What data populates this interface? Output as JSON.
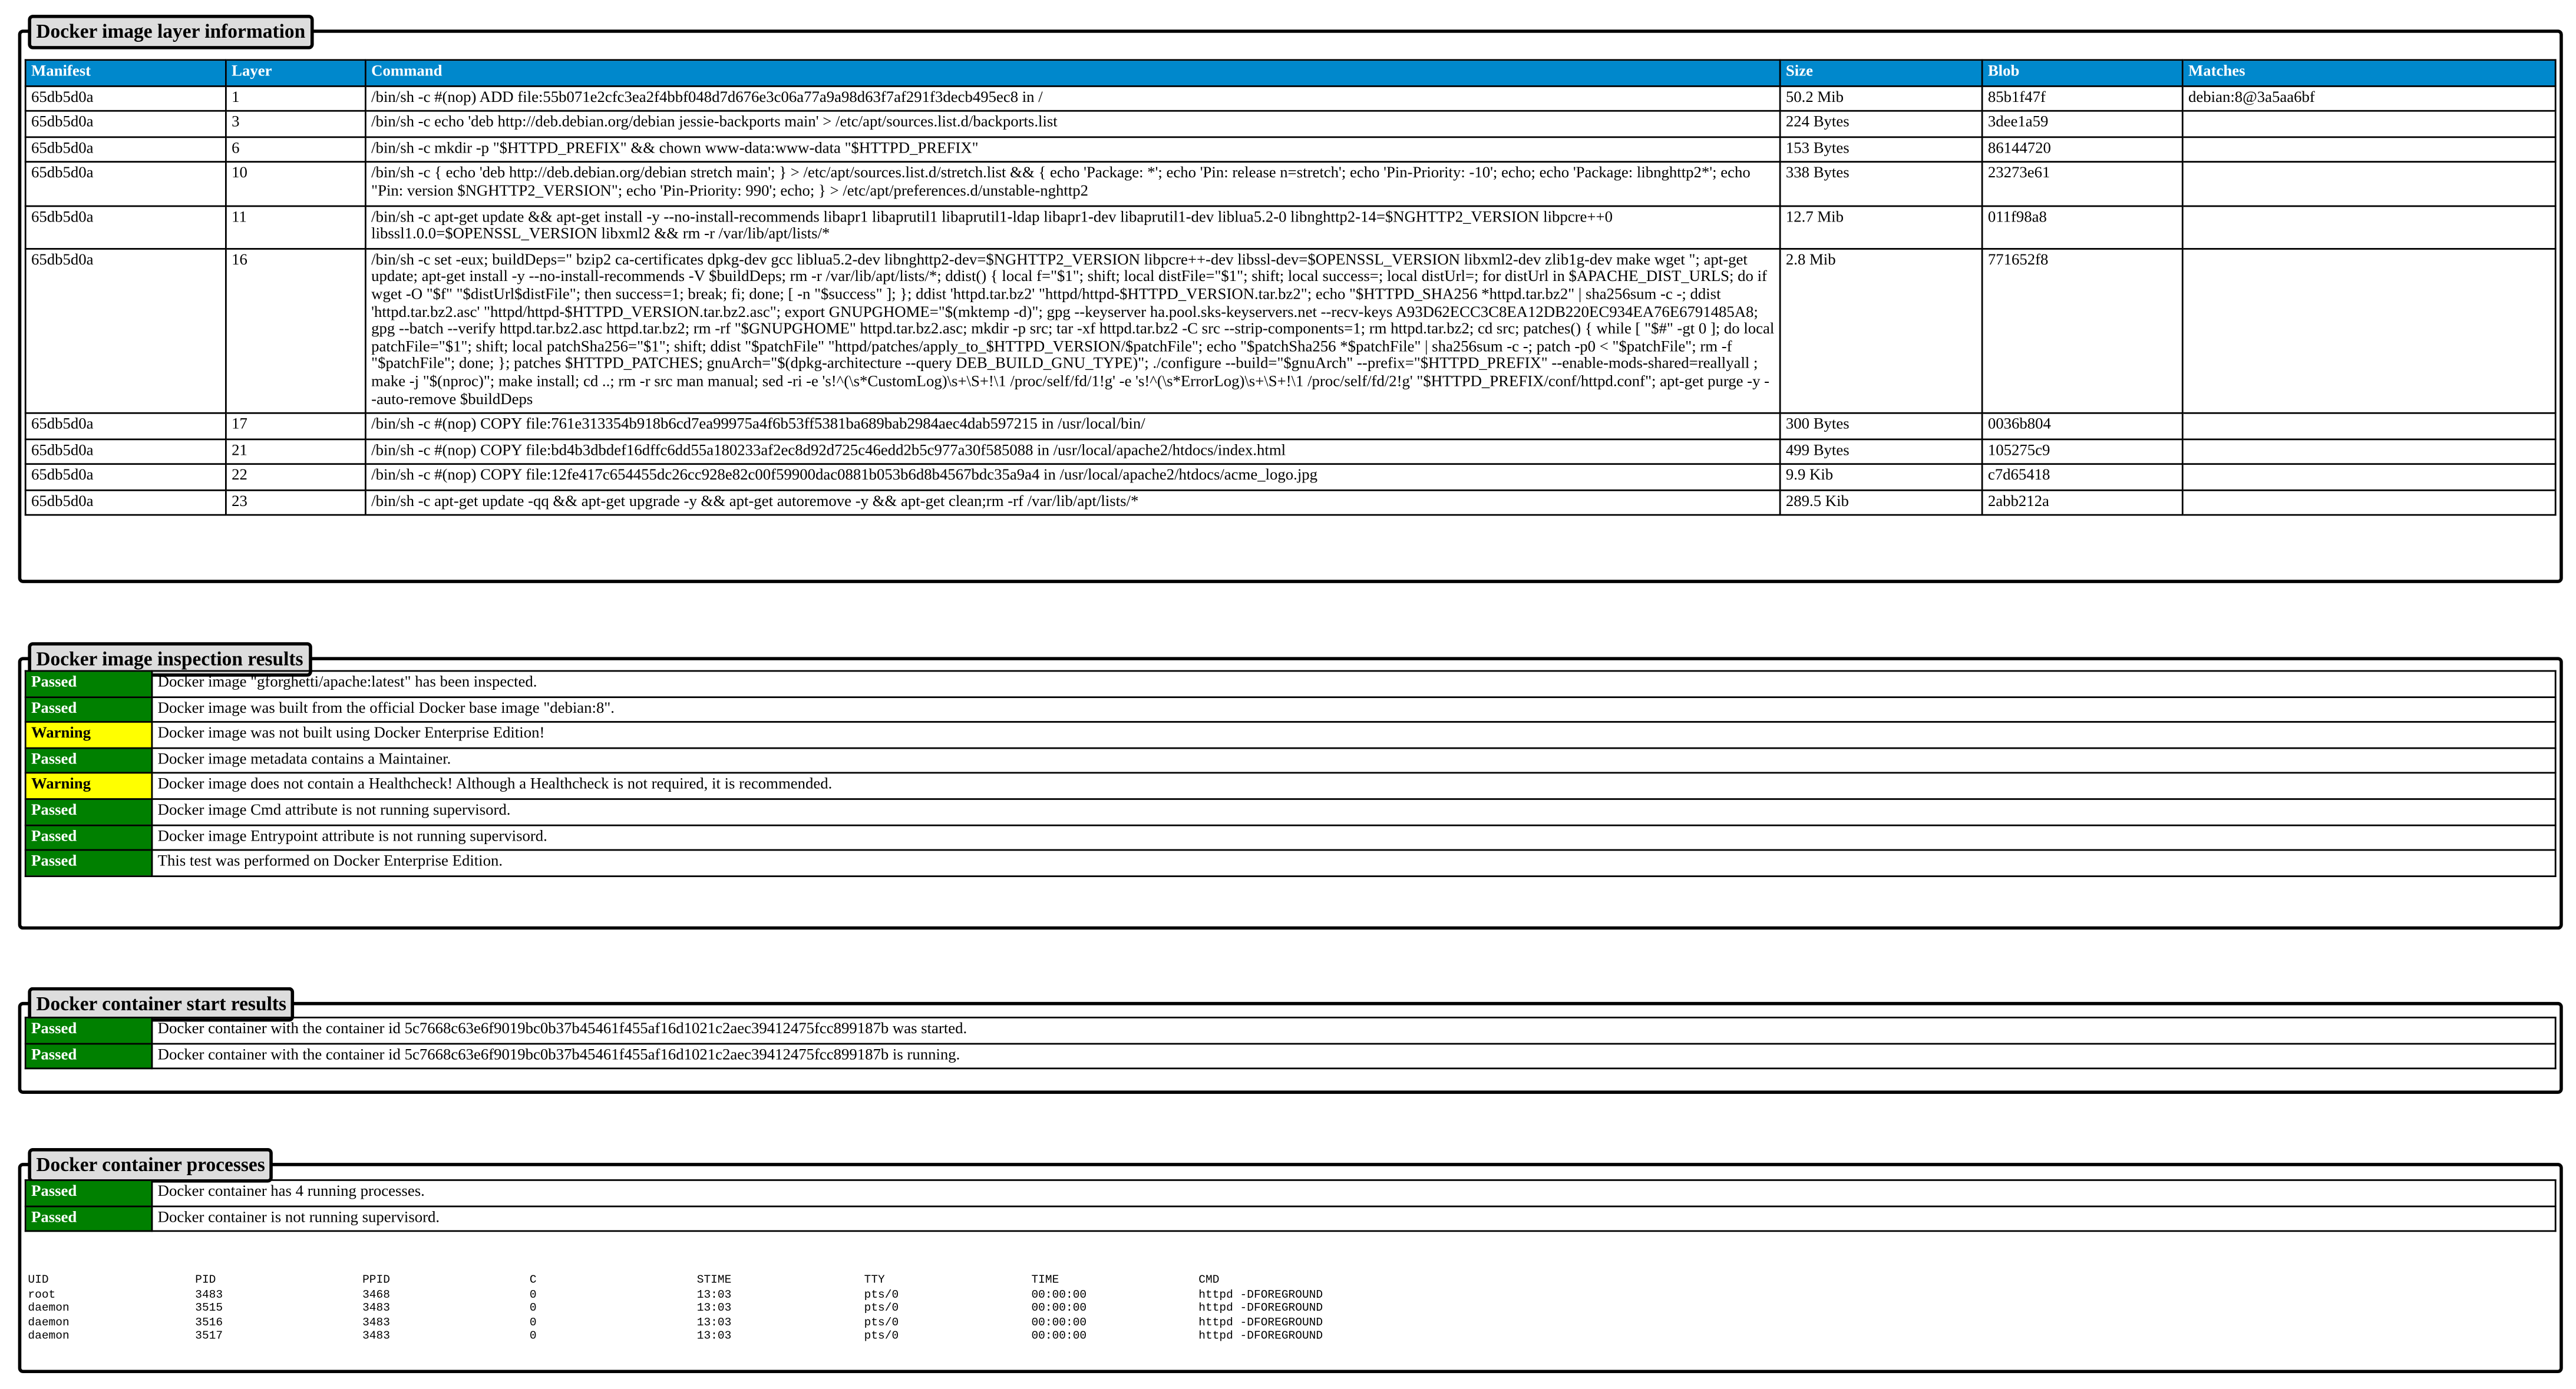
{
  "layers": {
    "title": "Docker image layer information",
    "columns": [
      "Manifest",
      "Layer",
      "Command",
      "Size",
      "Blob",
      "Matches"
    ],
    "rows": [
      [
        "65db5d0a",
        "1",
        "/bin/sh -c #(nop) ADD file:55b071e2cfc3ea2f4bbf048d7d676e3c06a77a9a98d63f7af291f3decb495ec8 in /",
        "50.2 Mib",
        "85b1f47f",
        "debian:8@3a5aa6bf"
      ],
      [
        "65db5d0a",
        "3",
        "/bin/sh -c echo 'deb http://deb.debian.org/debian jessie-backports main' > /etc/apt/sources.list.d/backports.list",
        "224 Bytes",
        "3dee1a59",
        ""
      ],
      [
        "65db5d0a",
        "6",
        "/bin/sh -c mkdir -p \"$HTTPD_PREFIX\" && chown www-data:www-data \"$HTTPD_PREFIX\"",
        "153 Bytes",
        "86144720",
        ""
      ],
      [
        "65db5d0a",
        "10",
        "/bin/sh -c { echo 'deb http://deb.debian.org/debian stretch main'; } > /etc/apt/sources.list.d/stretch.list && { echo 'Package: *'; echo 'Pin: release n=stretch'; echo 'Pin-Priority: -10'; echo; echo 'Package: libnghttp2*'; echo \"Pin: version $NGHTTP2_VERSION\"; echo 'Pin-Priority: 990'; echo; } > /etc/apt/preferences.d/unstable-nghttp2",
        "338 Bytes",
        "23273e61",
        ""
      ],
      [
        "65db5d0a",
        "11",
        "/bin/sh -c apt-get update && apt-get install -y --no-install-recommends libapr1 libaprutil1 libaprutil1-ldap libapr1-dev libaprutil1-dev liblua5.2-0 libnghttp2-14=$NGHTTP2_VERSION libpcre++0 libssl1.0.0=$OPENSSL_VERSION libxml2 && rm -r /var/lib/apt/lists/*",
        "12.7 Mib",
        "011f98a8",
        ""
      ],
      [
        "65db5d0a",
        "16",
        "/bin/sh -c set -eux; buildDeps=\" bzip2 ca-certificates dpkg-dev gcc liblua5.2-dev libnghttp2-dev=$NGHTTP2_VERSION libpcre++-dev libssl-dev=$OPENSSL_VERSION libxml2-dev zlib1g-dev make wget \"; apt-get update; apt-get install -y --no-install-recommends -V $buildDeps; rm -r /var/lib/apt/lists/*; ddist() { local f=\"$1\"; shift; local distFile=\"$1\"; shift; local success=; local distUrl=; for distUrl in $APACHE_DIST_URLS; do if wget -O \"$f\" \"$distUrl$distFile\"; then success=1; break; fi; done; [ -n \"$success\" ]; }; ddist 'httpd.tar.bz2' \"httpd/httpd-$HTTPD_VERSION.tar.bz2\"; echo \"$HTTPD_SHA256 *httpd.tar.bz2\" | sha256sum -c -; ddist 'httpd.tar.bz2.asc' \"httpd/httpd-$HTTPD_VERSION.tar.bz2.asc\"; export GNUPGHOME=\"$(mktemp -d)\"; gpg --keyserver ha.pool.sks-keyservers.net --recv-keys A93D62ECC3C8EA12DB220EC934EA76E6791485A8; gpg --batch --verify httpd.tar.bz2.asc httpd.tar.bz2; rm -rf \"$GNUPGHOME\" httpd.tar.bz2.asc; mkdir -p src; tar -xf httpd.tar.bz2 -C src --strip-components=1; rm httpd.tar.bz2; cd src; patches() { while [ \"$#\" -gt 0 ]; do local patchFile=\"$1\"; shift; local patchSha256=\"$1\"; shift; ddist \"$patchFile\" \"httpd/patches/apply_to_$HTTPD_VERSION/$patchFile\"; echo \"$patchSha256 *$patchFile\" | sha256sum -c -; patch -p0 < \"$patchFile\"; rm -f \"$patchFile\"; done; }; patches $HTTPD_PATCHES; gnuArch=\"$(dpkg-architecture --query DEB_BUILD_GNU_TYPE)\"; ./configure --build=\"$gnuArch\" --prefix=\"$HTTPD_PREFIX\" --enable-mods-shared=reallyall ; make -j \"$(nproc)\"; make install; cd ..; rm -r src man manual; sed -ri -e 's!^(\\s*CustomLog)\\s+\\S+!\\1 /proc/self/fd/1!g' -e 's!^(\\s*ErrorLog)\\s+\\S+!\\1 /proc/self/fd/2!g' \"$HTTPD_PREFIX/conf/httpd.conf\"; apt-get purge -y --auto-remove $buildDeps",
        "2.8 Mib",
        "771652f8",
        ""
      ],
      [
        "65db5d0a",
        "17",
        "/bin/sh -c #(nop) COPY file:761e313354b918b6cd7ea99975a4f6b53ff5381ba689bab2984aec4dab597215 in /usr/local/bin/",
        "300 Bytes",
        "0036b804",
        ""
      ],
      [
        "65db5d0a",
        "21",
        "/bin/sh -c #(nop) COPY file:bd4b3dbdef16dffc6dd55a180233af2ec8d92d725c46edd2b5c977a30f585088 in /usr/local/apache2/htdocs/index.html",
        "499 Bytes",
        "105275c9",
        ""
      ],
      [
        "65db5d0a",
        "22",
        "/bin/sh -c #(nop) COPY file:12fe417c654455dc26cc928e82c00f59900dac0881b053b6d8b4567bdc35a9a4 in /usr/local/apache2/htdocs/acme_logo.jpg",
        "9.9 Kib",
        "c7d65418",
        ""
      ],
      [
        "65db5d0a",
        "23",
        "/bin/sh -c apt-get update -qq && apt-get upgrade -y && apt-get autoremove -y && apt-get clean;rm -rf /var/lib/apt/lists/*",
        "289.5 Kib",
        "2abb212a",
        ""
      ]
    ]
  },
  "inspection": {
    "title": "Docker image inspection results",
    "rows": [
      {
        "status": "Passed",
        "message": "Docker image \"gforghetti/apache:latest\" has been inspected."
      },
      {
        "status": "Passed",
        "message": "Docker image was built from the official Docker base image \"debian:8\"."
      },
      {
        "status": "Warning",
        "message": "Docker image was not built using Docker Enterprise Edition!"
      },
      {
        "status": "Passed",
        "message": "Docker image metadata contains a Maintainer."
      },
      {
        "status": "Warning",
        "message": "Docker image does not contain a Healthcheck! Although a Healthcheck is not required, it is recommended."
      },
      {
        "status": "Passed",
        "message": "Docker image Cmd attribute is not running supervisord."
      },
      {
        "status": "Passed",
        "message": "Docker image Entrypoint attribute is not running supervisord."
      },
      {
        "status": "Passed",
        "message": "This test was performed on Docker Enterprise Edition."
      }
    ]
  },
  "start": {
    "title": "Docker container start results",
    "rows": [
      {
        "status": "Passed",
        "message": "Docker container with the container id 5c7668c63e6f9019bc0b37b45461f455af16d1021c2aec39412475fcc899187b was started."
      },
      {
        "status": "Passed",
        "message": "Docker container with the container id 5c7668c63e6f9019bc0b37b45461f455af16d1021c2aec39412475fcc899187b is running."
      }
    ]
  },
  "processes": {
    "title": "Docker container processes",
    "rows": [
      {
        "status": "Passed",
        "message": "Docker container has 4 running processes."
      },
      {
        "status": "Passed",
        "message": "Docker container is not running supervisord."
      }
    ],
    "ps_columns": [
      "UID",
      "PID",
      "PPID",
      "C",
      "STIME",
      "TTY",
      "TIME",
      "CMD"
    ],
    "ps_rows": [
      [
        "root",
        "3483",
        "3468",
        "0",
        "13:03",
        "pts/0",
        "00:00:00",
        "httpd -DFOREGROUND"
      ],
      [
        "daemon",
        "3515",
        "3483",
        "0",
        "13:03",
        "pts/0",
        "00:00:00",
        "httpd -DFOREGROUND"
      ],
      [
        "daemon",
        "3516",
        "3483",
        "0",
        "13:03",
        "pts/0",
        "00:00:00",
        "httpd -DFOREGROUND"
      ],
      [
        "daemon",
        "3517",
        "3483",
        "0",
        "13:03",
        "pts/0",
        "00:00:00",
        "httpd -DFOREGROUND"
      ]
    ]
  },
  "colors": {
    "header": "#0088cc",
    "passed": "#008000",
    "warning": "#ffff00",
    "legend": "#dddddd"
  }
}
